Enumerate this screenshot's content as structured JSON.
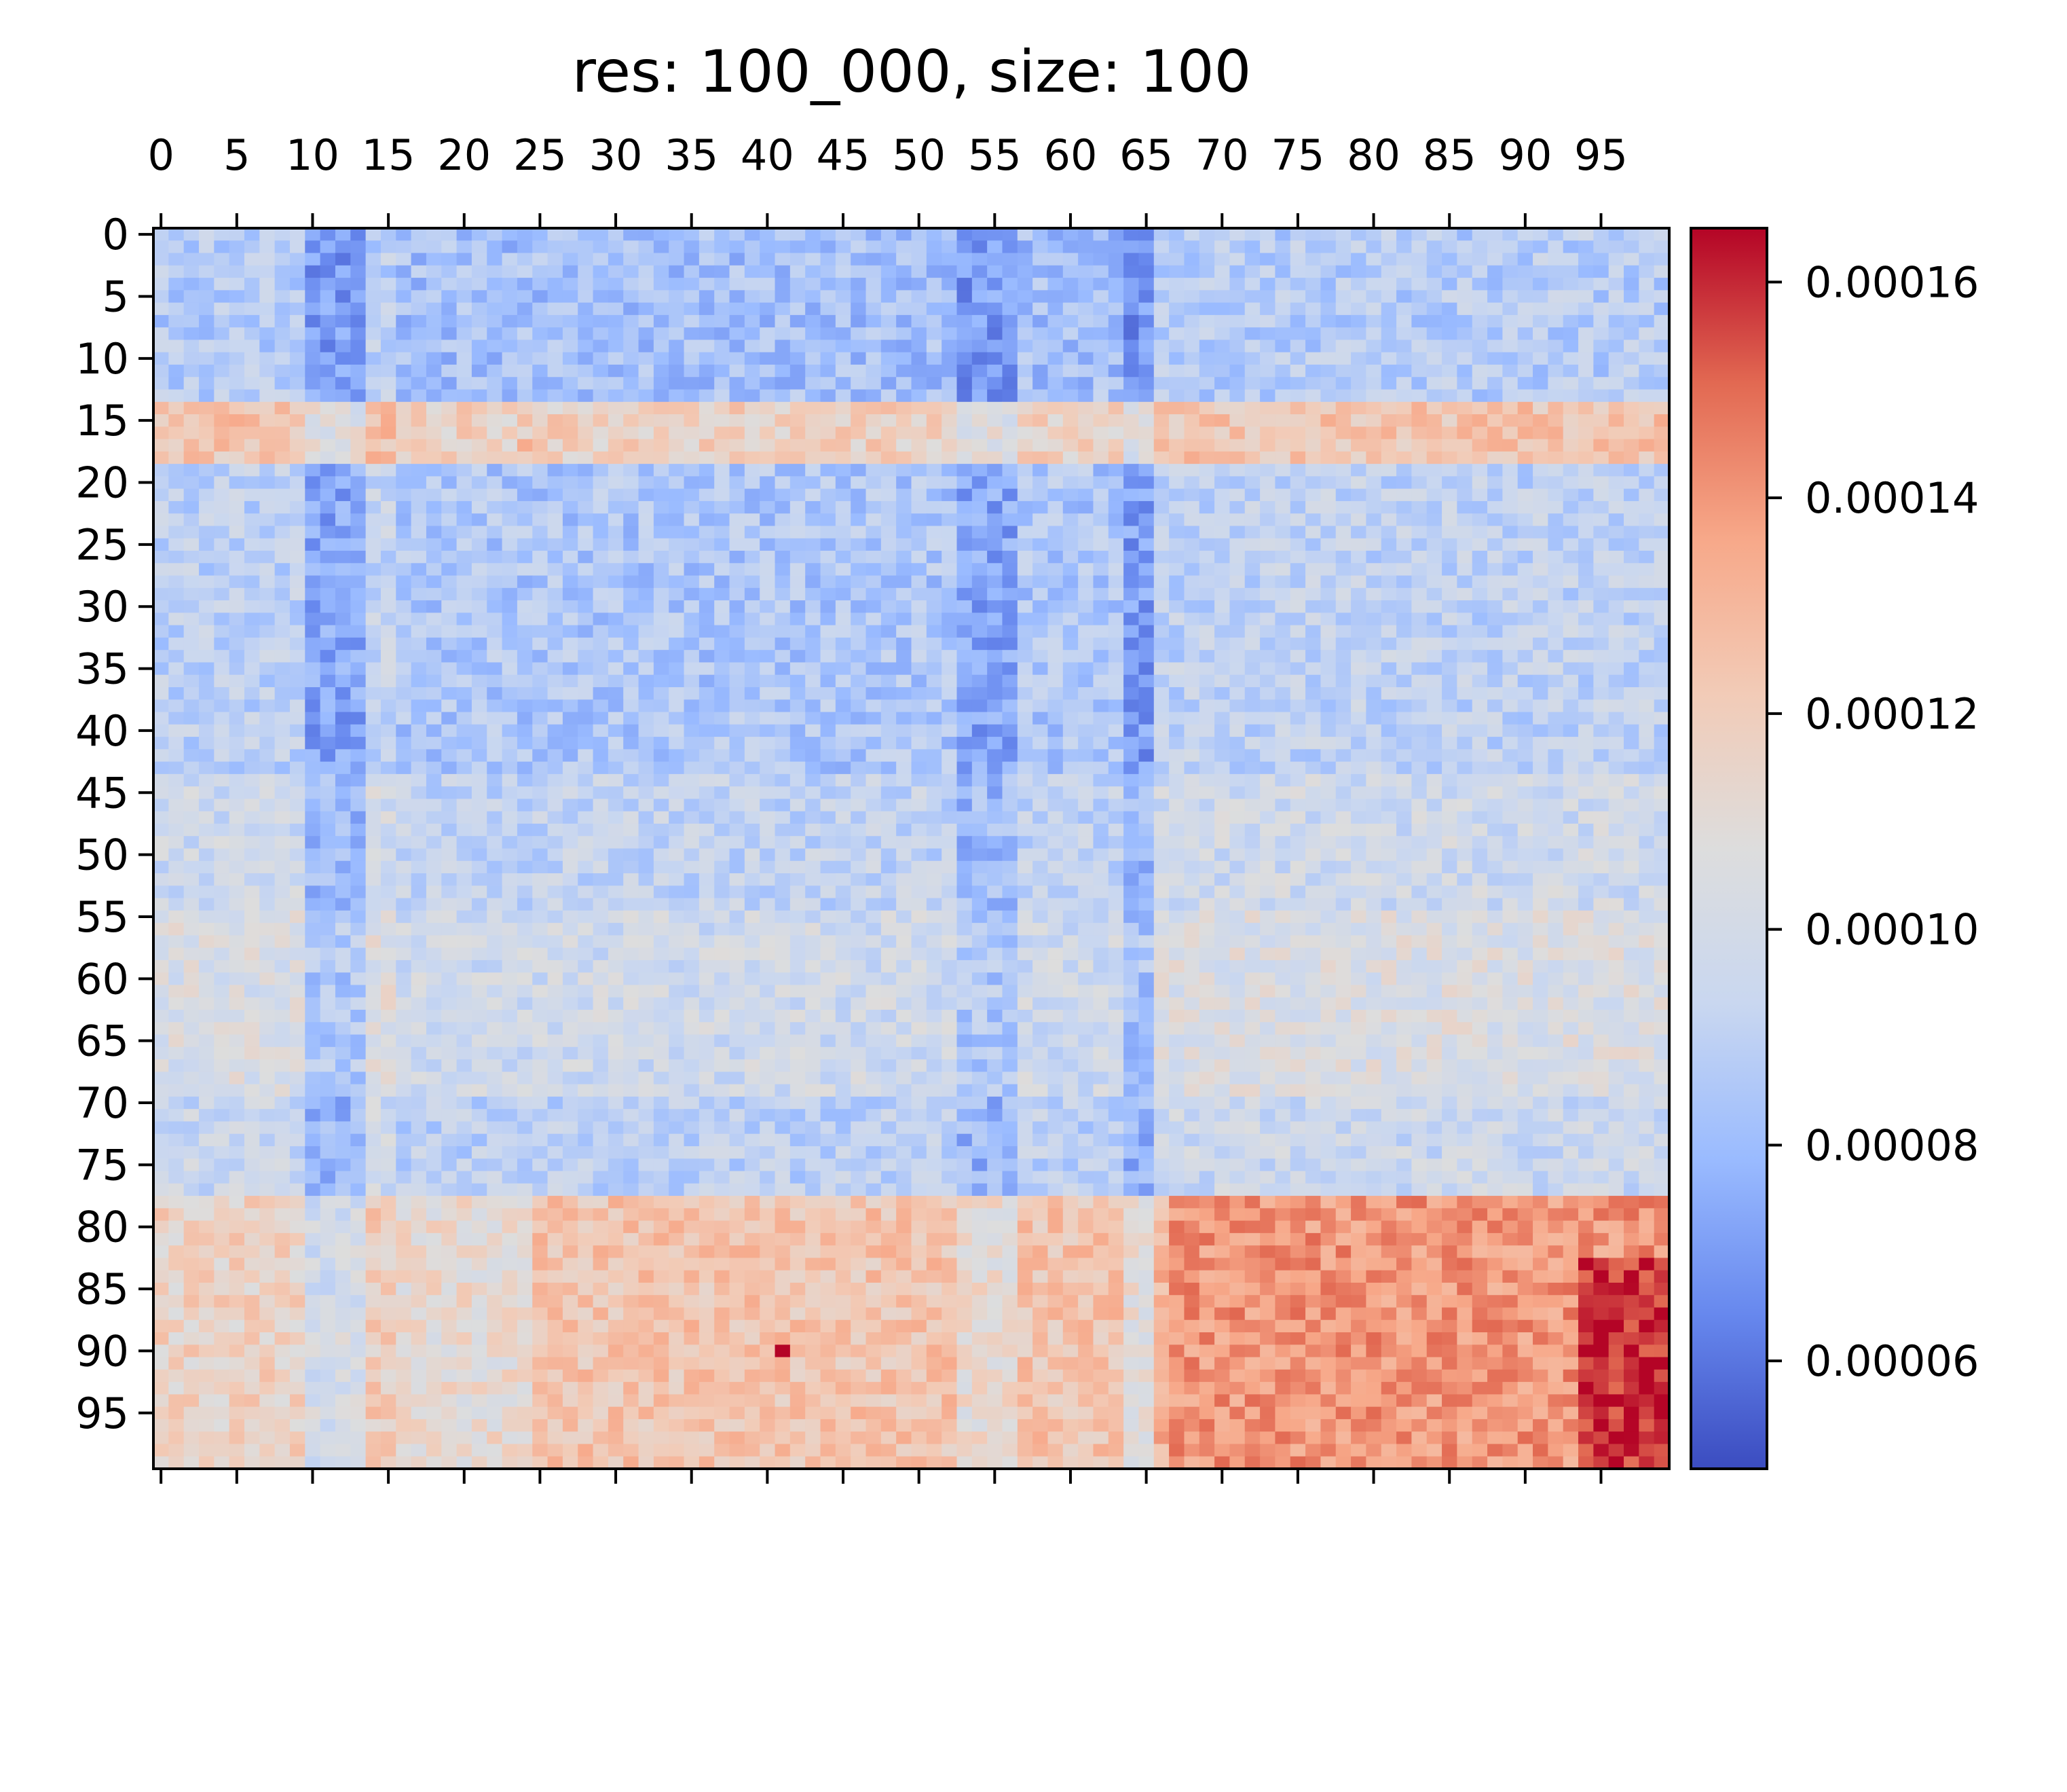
{
  "chart_data": {
    "type": "heatmap",
    "title": "res: 100_000, size: 100",
    "rows": 100,
    "cols": 100,
    "x_tick_labels": [
      "0",
      "5",
      "10",
      "15",
      "20",
      "25",
      "30",
      "35",
      "40",
      "45",
      "50",
      "55",
      "60",
      "65",
      "70",
      "75",
      "80",
      "85",
      "90",
      "95"
    ],
    "y_tick_labels": [
      "0",
      "5",
      "10",
      "15",
      "20",
      "25",
      "30",
      "35",
      "40",
      "45",
      "50",
      "55",
      "60",
      "65",
      "70",
      "75",
      "80",
      "85",
      "90",
      "95"
    ],
    "colormap": "coolwarm",
    "colormap_stops": [
      "#3b4cc0",
      "#6788ee",
      "#9abbff",
      "#c9d7f0",
      "#dddddd",
      "#f2cbb7",
      "#f7a889",
      "#e26952",
      "#b40426"
    ],
    "color_range": [
      5e-05,
      0.000165
    ],
    "colorbar_tick_labels": [
      "0.00006",
      "0.00008",
      "0.00010",
      "0.00012",
      "0.00014",
      "0.00016"
    ],
    "colorbar_tick_values": [
      6e-05,
      8e-05,
      0.0001,
      0.00012,
      0.00014,
      0.00016
    ],
    "row_bands": [
      {
        "rows": [
          0,
          13
        ],
        "mean": 8.2e-05
      },
      {
        "rows": [
          14,
          18
        ],
        "mean": 0.000118
      },
      {
        "rows": [
          19,
          43
        ],
        "mean": 8.5e-05
      },
      {
        "rows": [
          44,
          54
        ],
        "mean": 9.2e-05
      },
      {
        "rows": [
          55,
          69
        ],
        "mean": 9.8e-05
      },
      {
        "rows": [
          70,
          77
        ],
        "mean": 9e-05
      },
      {
        "rows": [
          78,
          99
        ],
        "mean": 0.000112
      }
    ],
    "col_bands": [
      {
        "cols": [
          0,
          9
        ],
        "offset": 5e-06
      },
      {
        "cols": [
          10,
          13
        ],
        "offset": -1.2e-05
      },
      {
        "cols": [
          14,
          15
        ],
        "offset": 8e-06
      },
      {
        "cols": [
          53,
          56
        ],
        "offset": -1.2e-05
      },
      {
        "cols": [
          64,
          65
        ],
        "offset": -1.4e-05
      },
      {
        "cols": [
          66,
          99
        ],
        "offset": 6e-06
      }
    ],
    "hot_region": {
      "rows": [
        78,
        99
      ],
      "cols": [
        67,
        99
      ],
      "mean": 0.00014
    },
    "hottest_region": {
      "rows": [
        83,
        99
      ],
      "cols": [
        94,
        99
      ],
      "mean": 0.00016
    },
    "notable_cells": [
      {
        "row": 90,
        "col": 41,
        "value": 0.000165
      },
      {
        "row": 15,
        "col": 5,
        "value": 0.000135
      },
      {
        "row": 15,
        "col": 15,
        "value": 0.000135
      },
      {
        "row": 17,
        "col": 24,
        "value": 0.000135
      }
    ]
  }
}
